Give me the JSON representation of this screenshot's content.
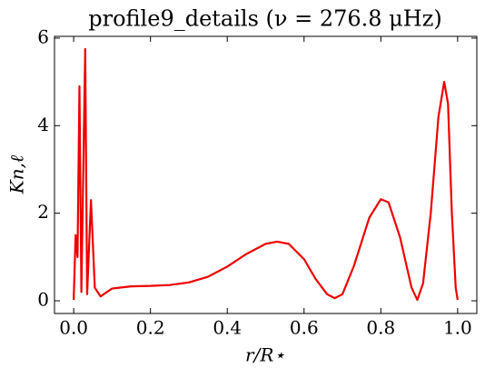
{
  "chart_data": {
    "type": "line",
    "title": "profile9_details (ν = 276.8 μHz)",
    "xlabel": "r/R⋆",
    "ylabel": "Kn,ℓ",
    "x": [
      0.0,
      0.005,
      0.01,
      0.015,
      0.02,
      0.03,
      0.035,
      0.045,
      0.055,
      0.07,
      0.1,
      0.15,
      0.2,
      0.25,
      0.3,
      0.35,
      0.4,
      0.45,
      0.5,
      0.53,
      0.56,
      0.6,
      0.63,
      0.66,
      0.68,
      0.7,
      0.73,
      0.77,
      0.8,
      0.82,
      0.85,
      0.88,
      0.895,
      0.91,
      0.93,
      0.95,
      0.965,
      0.975,
      0.985,
      0.995,
      1.0
    ],
    "series": [
      {
        "color": "#ee0000",
        "values": [
          0.02,
          1.5,
          1.0,
          4.9,
          0.2,
          5.75,
          0.15,
          2.3,
          0.3,
          0.1,
          0.28,
          0.33,
          0.34,
          0.36,
          0.42,
          0.55,
          0.78,
          1.07,
          1.3,
          1.35,
          1.3,
          0.95,
          0.5,
          0.15,
          0.06,
          0.15,
          0.8,
          1.9,
          2.32,
          2.25,
          1.45,
          0.3,
          0.02,
          0.4,
          2.0,
          4.2,
          5.0,
          4.5,
          2.0,
          0.3,
          0.02
        ]
      }
    ],
    "xlim": [
      -0.05,
      1.05
    ],
    "ylim": [
      -0.29,
      6.04
    ],
    "xticks": [
      {
        "value": 0,
        "label": "0.0"
      },
      {
        "value": 0.2,
        "label": "0.2"
      },
      {
        "value": 0.4,
        "label": "0.4"
      },
      {
        "value": 0.6,
        "label": "0.6"
      },
      {
        "value": 0.8,
        "label": "0.8"
      },
      {
        "value": 1,
        "label": "1.0"
      }
    ],
    "yticks": [
      0,
      2,
      4,
      6
    ],
    "grid": false
  }
}
